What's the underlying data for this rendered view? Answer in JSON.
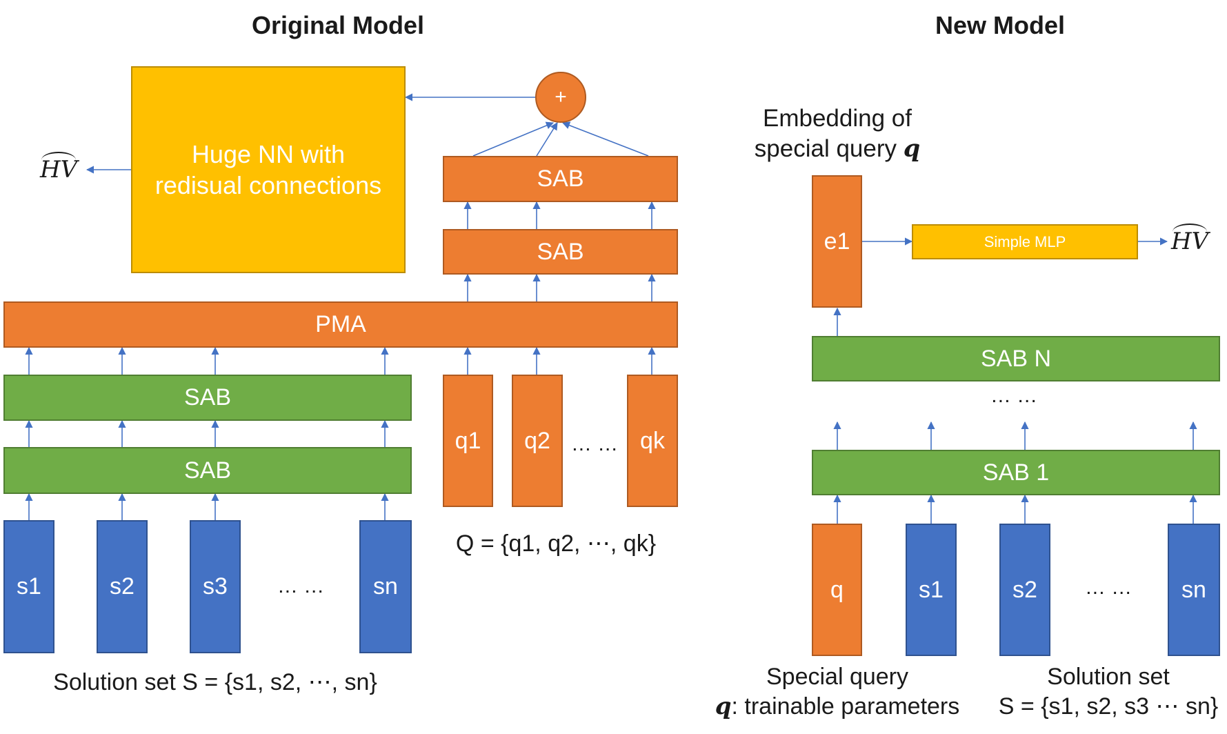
{
  "titles": {
    "left": "Original Model",
    "right": "New Model"
  },
  "original": {
    "huge_nn": "Huge NN with\nredisual connections",
    "plus": "+",
    "sab_top": "SAB",
    "sab_mid": "SAB",
    "pma": "PMA",
    "sab_green_top": "SAB",
    "sab_green_bottom": "SAB",
    "solutions": [
      "s1",
      "s2",
      "s3",
      "sn"
    ],
    "solutions_ellipsis": "… …",
    "queries": [
      "q1",
      "q2",
      "qk"
    ],
    "queries_ellipsis": "… …",
    "query_set_label": "Q = {q1, q2, ⋯, qk}",
    "solution_set_label": "Solution set S = {s1, s2, ⋯, sn}",
    "output_label": "HV"
  },
  "new": {
    "embedding_label_line1": "Embedding of",
    "embedding_label_line2": "special query ",
    "embedding_label_q": "q",
    "e1": "e1",
    "mlp": "Simple MLP",
    "output_label": "HV",
    "sab_n": "SAB N",
    "middle_ellipsis": "… …",
    "sab_1": "SAB 1",
    "inputs": [
      "q",
      "s1",
      "s2",
      "sn"
    ],
    "inputs_ellipsis": "… …",
    "special_query_line1": "Special query",
    "special_query_q": "q",
    "special_query_line2": ": trainable parameters",
    "solution_set_line1": "Solution set",
    "solution_set_line2": "S = {s1, s2, s3 ⋯ sn}"
  },
  "colors": {
    "orange": "#ED7D31",
    "green": "#70AD47",
    "blue": "#4472C4",
    "yellow": "#FFC000",
    "arrow": "#4472C4"
  }
}
